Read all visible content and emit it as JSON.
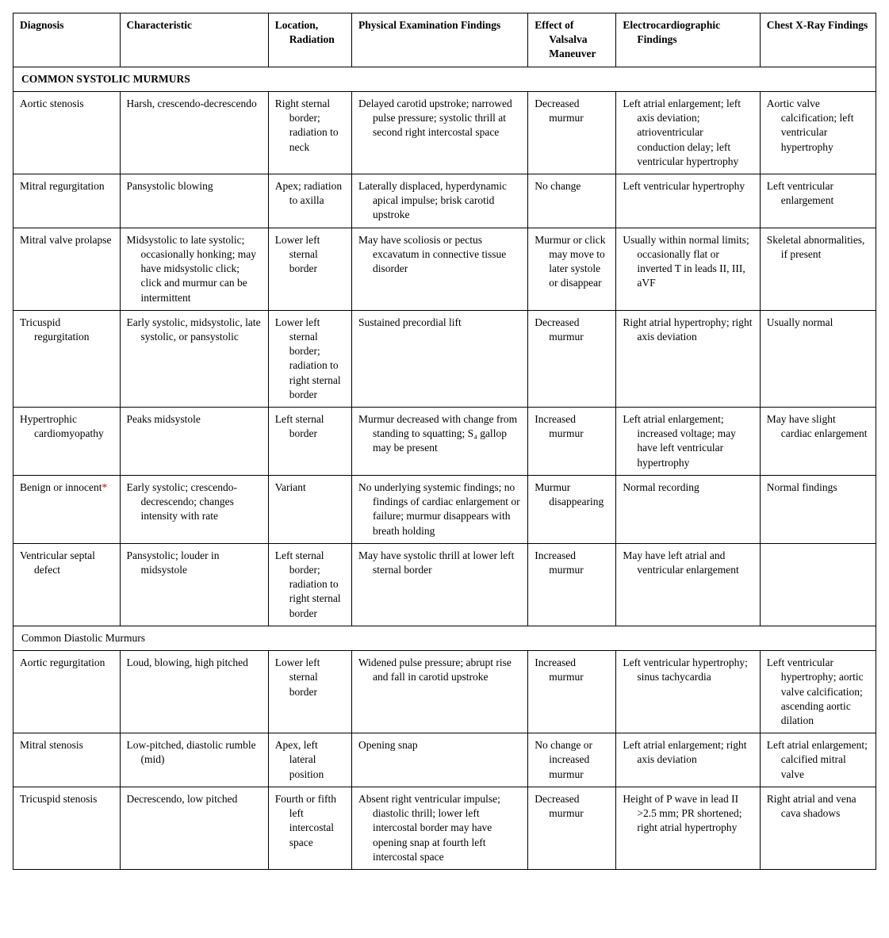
{
  "table": {
    "columns": [
      "Diagnosis",
      "Characteristic",
      "Location, Radiation",
      "Physical Examination Findings",
      "Effect of Valsalva Maneuver",
      "Electrocardiographic Findings",
      "Chest X-Ray Findings"
    ],
    "column_widths_pct": [
      11.5,
      16,
      9,
      19,
      9.5,
      15.5,
      12.5
    ],
    "font_family": "Georgia, Times New Roman, serif",
    "font_size_pt": 10,
    "border_color": "#000000",
    "background_color": "#ffffff",
    "text_color": "#000000",
    "asterisk_color": "#cc0000",
    "sections": [
      {
        "title": "COMMON SYSTOLIC MURMURS",
        "rows": [
          {
            "diagnosis": "Aortic stenosis",
            "diagnosis_asterisk": false,
            "characteristic": "Harsh, crescendo-decrescendo",
            "location": "Right sternal border; radiation to neck",
            "findings": "Delayed carotid upstroke; narrowed pulse pressure; systolic thrill at second right intercostal space",
            "valsalva": "Decreased murmur",
            "ecg": "Left atrial enlargement; left axis deviation; atrioventricular conduction delay; left ventricular hypertrophy",
            "xray": "Aortic valve calcification; left ventricular hypertrophy"
          },
          {
            "diagnosis": "Mitral regurgitation",
            "diagnosis_asterisk": false,
            "characteristic": "Pansystolic blowing",
            "location": "Apex; radiation to axilla",
            "findings": "Laterally displaced, hyperdynamic apical impulse; brisk carotid upstroke",
            "valsalva": "No change",
            "ecg": "Left ventricular hypertrophy",
            "xray": "Left ventricular enlargement"
          },
          {
            "diagnosis": "Mitral valve prolapse",
            "diagnosis_asterisk": false,
            "characteristic": "Midsystolic to late systolic; occasionally honking; may have midsystolic click; click and murmur can be intermittent",
            "location": "Lower left sternal border",
            "findings": "May have scoliosis or pectus excavatum in connective tissue disorder",
            "valsalva": "Murmur or click may move to later systole or disappear",
            "ecg": "Usually within normal limits; occasionally flat or inverted T in leads II, III, aVF",
            "xray": "Skeletal abnormalities, if present"
          },
          {
            "diagnosis": "Tricuspid regurgitation",
            "diagnosis_asterisk": false,
            "characteristic": "Early systolic, midsystolic, late systolic, or pansystolic",
            "location": "Lower left sternal border; radiation to right sternal border",
            "findings": "Sustained precordial lift",
            "valsalva": "Decreased murmur",
            "ecg": "Right atrial hypertrophy; right axis deviation",
            "xray": "Usually normal"
          },
          {
            "diagnosis": "Hypertrophic cardiomyopathy",
            "diagnosis_asterisk": false,
            "characteristic": "Peaks midsystole",
            "location": "Left sternal border",
            "findings": "Murmur decreased with change from standing to squatting; S₄ gallop may be present",
            "valsalva": "Increased murmur",
            "ecg": "Left atrial enlargement; increased voltage; may have left ventricular hypertrophy",
            "xray": "May have slight cardiac enlargement"
          },
          {
            "diagnosis": "Benign or innocent",
            "diagnosis_asterisk": true,
            "characteristic": "Early systolic; crescendo-decrescendo; changes intensity with rate",
            "location": "Variant",
            "findings": "No underlying systemic findings; no findings of cardiac enlargement or failure; murmur disappears with breath holding",
            "valsalva": "Murmur disappearing",
            "ecg": "Normal recording",
            "xray": "Normal findings"
          },
          {
            "diagnosis": "Ventricular septal defect",
            "diagnosis_asterisk": false,
            "characteristic": "Pansystolic; louder in midsystole",
            "location": "Left sternal border; radiation to right sternal border",
            "findings": "May have systolic thrill at lower left sternal border",
            "valsalva": "Increased murmur",
            "ecg": "May have left atrial and ventricular enlargement",
            "xray": ""
          }
        ]
      },
      {
        "title": "Common Diastolic Murmurs",
        "rows": [
          {
            "diagnosis": "Aortic regurgitation",
            "diagnosis_asterisk": false,
            "characteristic": "Loud, blowing, high pitched",
            "location": "Lower left sternal border",
            "findings": "Widened pulse pressure; abrupt rise and fall in carotid upstroke",
            "valsalva": "Increased murmur",
            "ecg": "Left ventricular hypertrophy; sinus tachycardia",
            "xray": "Left ventricular hypertrophy; aortic valve calcification; ascending aortic dilation"
          },
          {
            "diagnosis": "Mitral stenosis",
            "diagnosis_asterisk": false,
            "characteristic": "Low-pitched, diastolic rumble (mid)",
            "location": "Apex, left lateral position",
            "findings": "Opening snap",
            "valsalva": "No change or increased murmur",
            "ecg": "Left atrial enlargement; right axis deviation",
            "xray": "Left atrial enlargement; calcified mitral valve"
          },
          {
            "diagnosis": "Tricuspid stenosis",
            "diagnosis_asterisk": false,
            "characteristic": "Decrescendo, low pitched",
            "location": "Fourth or fifth left intercostal space",
            "findings": "Absent right ventricular impulse; diastolic thrill; lower left intercostal border may have opening snap at fourth left intercostal space",
            "valsalva": "Decreased murmur",
            "ecg": "Height of P wave in lead II >2.5 mm; PR shortened; right atrial hypertrophy",
            "xray": "Right atrial and vena cava shadows"
          }
        ]
      }
    ]
  }
}
